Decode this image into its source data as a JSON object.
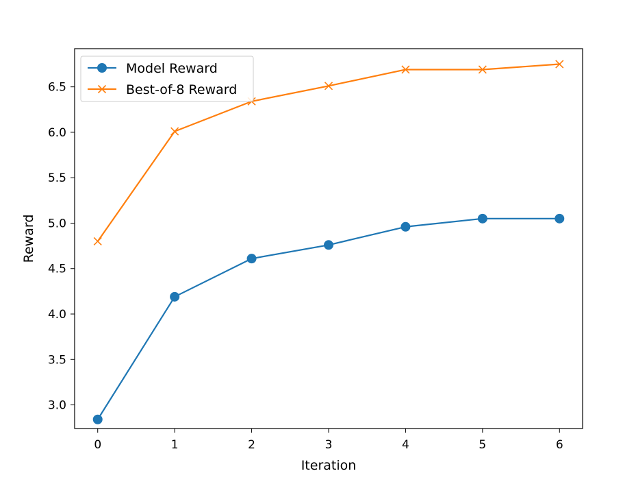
{
  "chart_data": {
    "type": "line",
    "title": "",
    "xlabel": "Iteration",
    "ylabel": "Reward",
    "x": [
      0,
      1,
      2,
      3,
      4,
      5,
      6
    ],
    "xlim": [
      -0.3,
      6.3
    ],
    "ylim": [
      2.74,
      6.92
    ],
    "xticks": [
      0,
      1,
      2,
      3,
      4,
      5,
      6
    ],
    "yticks": [
      3.0,
      3.5,
      4.0,
      4.5,
      5.0,
      5.5,
      6.0,
      6.5
    ],
    "ytick_labels": [
      "3.0",
      "3.5",
      "4.0",
      "4.5",
      "5.0",
      "5.5",
      "6.0",
      "6.5"
    ],
    "grid": false,
    "legend_position": "upper-left",
    "series": [
      {
        "name": "Model Reward",
        "values": [
          2.84,
          4.19,
          4.61,
          4.76,
          4.96,
          5.05,
          5.05
        ],
        "color": "#1f77b4",
        "marker": "circle"
      },
      {
        "name": "Best-of-8 Reward",
        "values": [
          4.8,
          6.01,
          6.34,
          6.51,
          6.69,
          6.69,
          6.75
        ],
        "color": "#ff7f0e",
        "marker": "x"
      }
    ]
  }
}
